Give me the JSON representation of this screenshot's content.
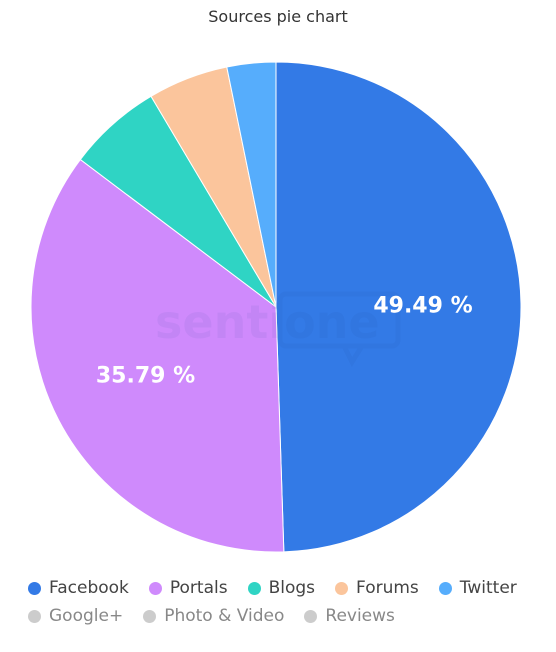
{
  "chart_data": {
    "type": "pie",
    "title": "Sources pie chart",
    "slices": [
      {
        "name": "Facebook",
        "value": 49.49,
        "color": "#337ae6",
        "label": "49.49 %"
      },
      {
        "name": "Portals",
        "value": 35.79,
        "color": "#cf8afc",
        "label": "35.79 %"
      },
      {
        "name": "Blogs",
        "value": 6.2,
        "color": "#2fd4c4",
        "label": ""
      },
      {
        "name": "Forums",
        "value": 5.3,
        "color": "#fbc59c",
        "label": ""
      },
      {
        "name": "Twitter",
        "value": 3.22,
        "color": "#56adfc",
        "label": ""
      }
    ],
    "legend": [
      {
        "name": "Facebook",
        "color": "#337ae6",
        "enabled": true
      },
      {
        "name": "Portals",
        "color": "#cf8afc",
        "enabled": true
      },
      {
        "name": "Blogs",
        "color": "#2fd4c4",
        "enabled": true
      },
      {
        "name": "Forums",
        "color": "#fbc59c",
        "enabled": true
      },
      {
        "name": "Twitter",
        "color": "#56adfc",
        "enabled": true
      },
      {
        "name": "Google+",
        "color": "#cccccc",
        "enabled": false
      },
      {
        "name": "Photo & Video",
        "color": "#cccccc",
        "enabled": false
      },
      {
        "name": "Reviews",
        "color": "#cccccc",
        "enabled": false
      }
    ],
    "legend_position": "bottom"
  },
  "watermark": "sentione"
}
